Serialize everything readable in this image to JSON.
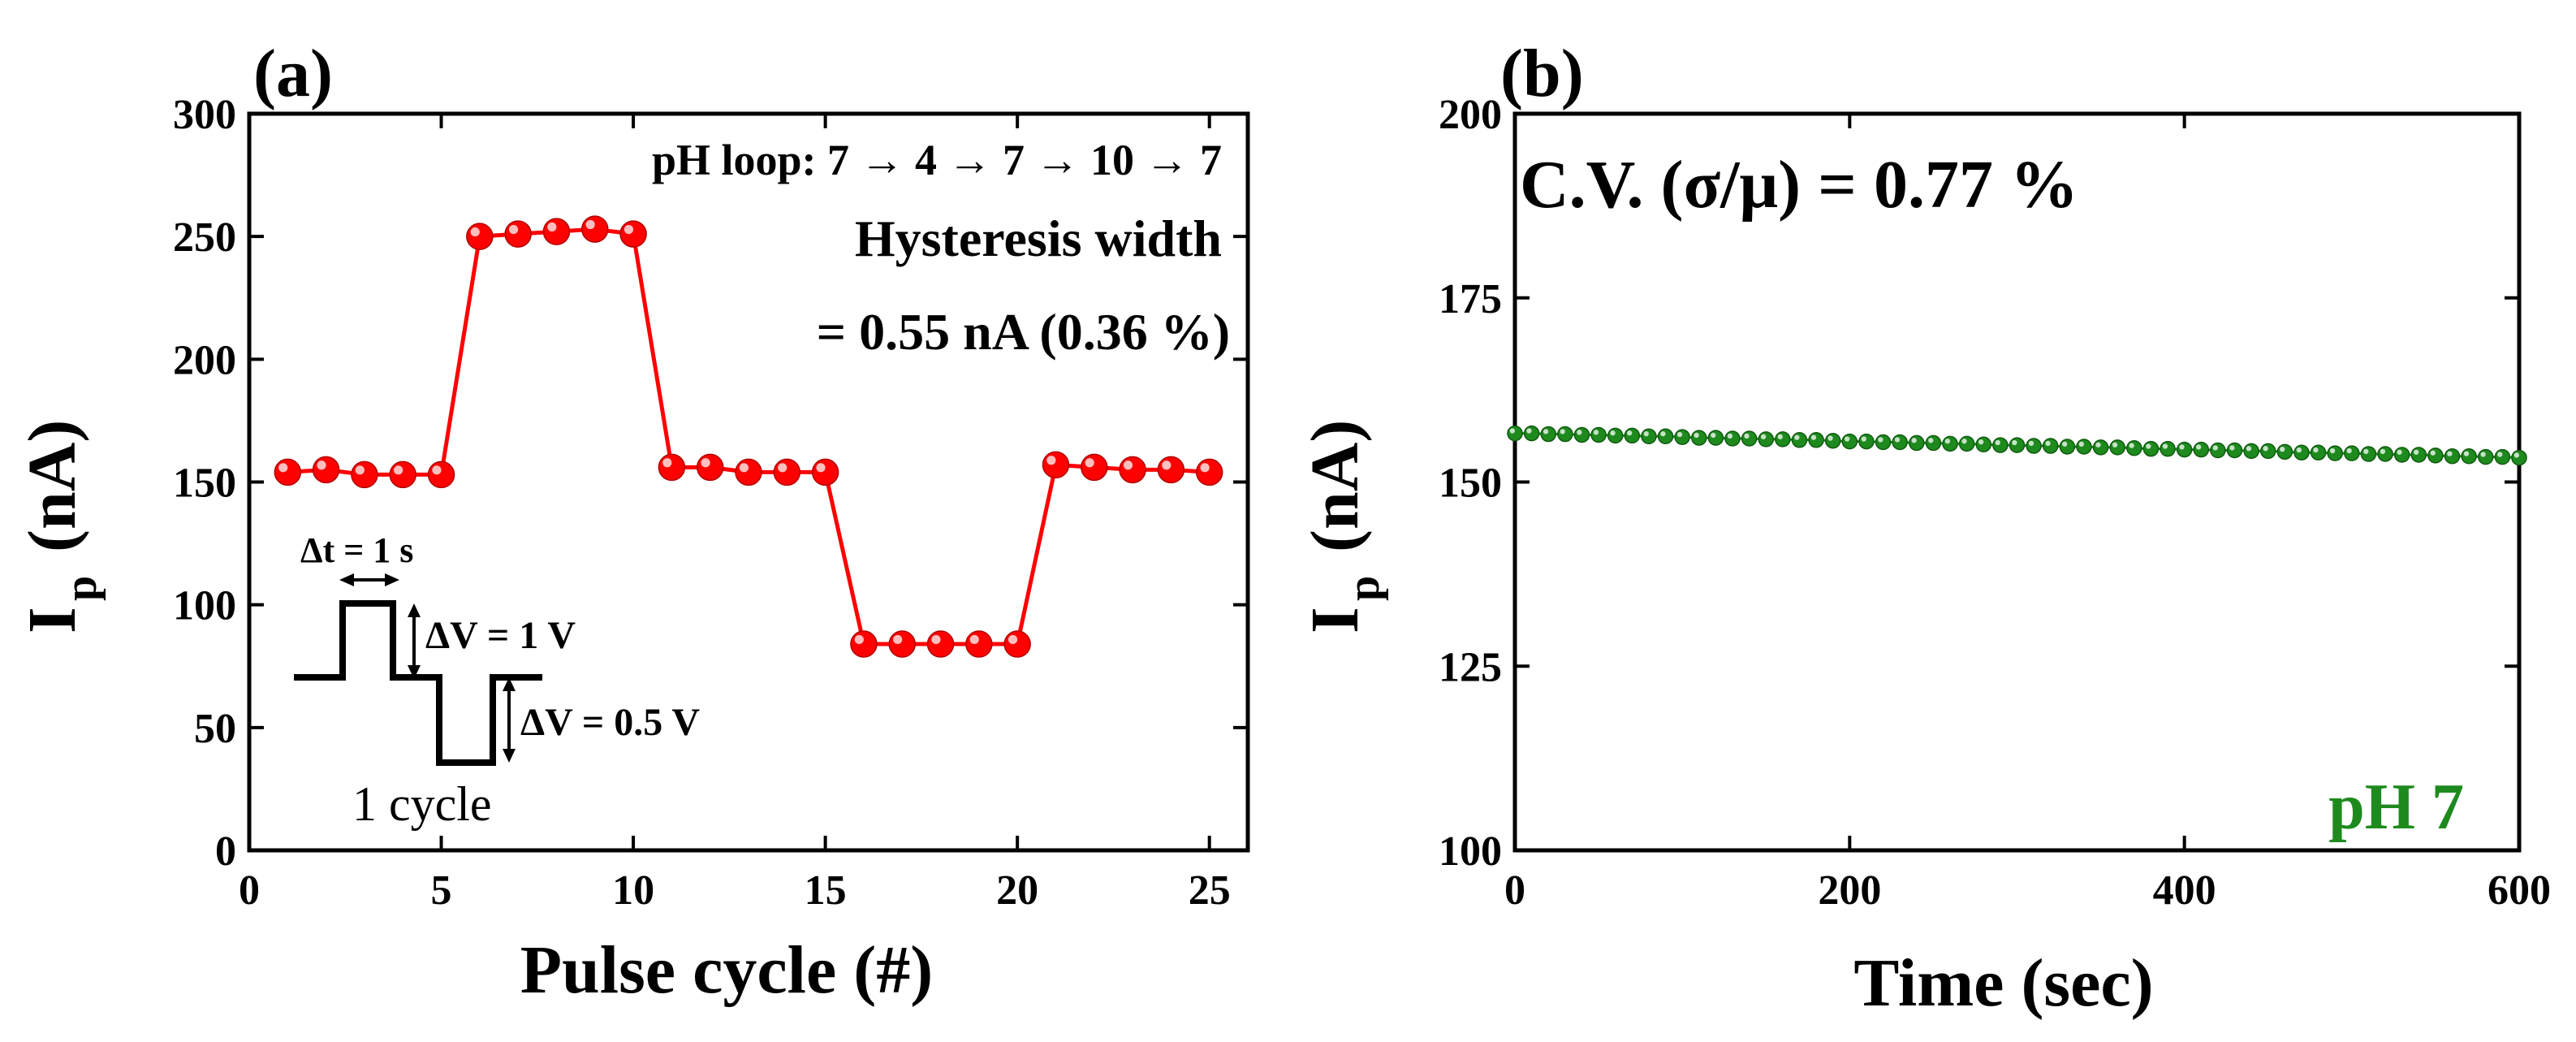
{
  "chart_data": [
    {
      "type": "line",
      "panel_label": "(a)",
      "title": "",
      "xlabel": "Pulse cycle (#)",
      "ylabel_main": "I",
      "ylabel_sub": "p",
      "ylabel_unit": "(nA)",
      "xlim": [
        0,
        26
      ],
      "ylim": [
        0,
        300
      ],
      "xticks": [
        0,
        5,
        10,
        15,
        20,
        25
      ],
      "yticks": [
        0,
        50,
        100,
        150,
        200,
        250,
        300
      ],
      "series": [
        {
          "name": "Ip",
          "color": "#ff0000",
          "x": [
            1,
            2,
            3,
            4,
            5,
            6,
            7,
            8,
            9,
            10,
            11,
            12,
            13,
            14,
            15,
            16,
            17,
            18,
            19,
            20,
            21,
            22,
            23,
            24,
            25
          ],
          "values": [
            154,
            155,
            153,
            153,
            153,
            250,
            251,
            252,
            253,
            251,
            156,
            156,
            154,
            154,
            154,
            84,
            84,
            84,
            84,
            84,
            157,
            156,
            155,
            155,
            154
          ]
        }
      ],
      "annotations": {
        "ph_loop": "pH loop: 7 → 4 → 7 → 10 → 7",
        "hysteresis_line1": "Hysteresis width",
        "hysteresis_line2": "= 0.55 nA (0.36 %)",
        "dt_label": "Δt = 1 s",
        "dv1_label": "ΔV = 1 V",
        "dv2_label": "ΔV = 0.5 V",
        "cycle_label": "1 cycle"
      }
    },
    {
      "type": "scatter",
      "panel_label": "(b)",
      "title": "",
      "xlabel": "Time (sec)",
      "ylabel_main": "I",
      "ylabel_sub": "p",
      "ylabel_unit": "(nA)",
      "xlim": [
        0,
        600
      ],
      "ylim": [
        100,
        200
      ],
      "xticks": [
        0,
        200,
        400,
        600
      ],
      "yticks": [
        100,
        125,
        150,
        175,
        200
      ],
      "series": [
        {
          "name": "pH 7",
          "color": "#1e8a1e",
          "x_start": 0,
          "x_step": 10,
          "values": [
            156.6,
            156.6,
            156.5,
            156.5,
            156.4,
            156.4,
            156.3,
            156.3,
            156.2,
            156.2,
            156.1,
            156.0,
            156.0,
            155.9,
            155.9,
            155.8,
            155.8,
            155.7,
            155.7,
            155.6,
            155.5,
            155.5,
            155.4,
            155.4,
            155.3,
            155.3,
            155.2,
            155.2,
            155.1,
            155.0,
            155.0,
            154.9,
            154.9,
            154.8,
            154.8,
            154.7,
            154.7,
            154.6,
            154.5,
            154.5,
            154.4,
            154.4,
            154.3,
            154.3,
            154.2,
            154.2,
            154.1,
            154.0,
            154.0,
            153.9,
            153.9,
            153.8,
            153.8,
            153.7,
            153.7,
            153.6,
            153.5,
            153.5,
            153.4,
            153.4,
            153.3
          ]
        }
      ],
      "annotations": {
        "cv_label": "C.V. (σ/μ) = 0.77 %",
        "ph_label": "pH 7"
      }
    }
  ]
}
